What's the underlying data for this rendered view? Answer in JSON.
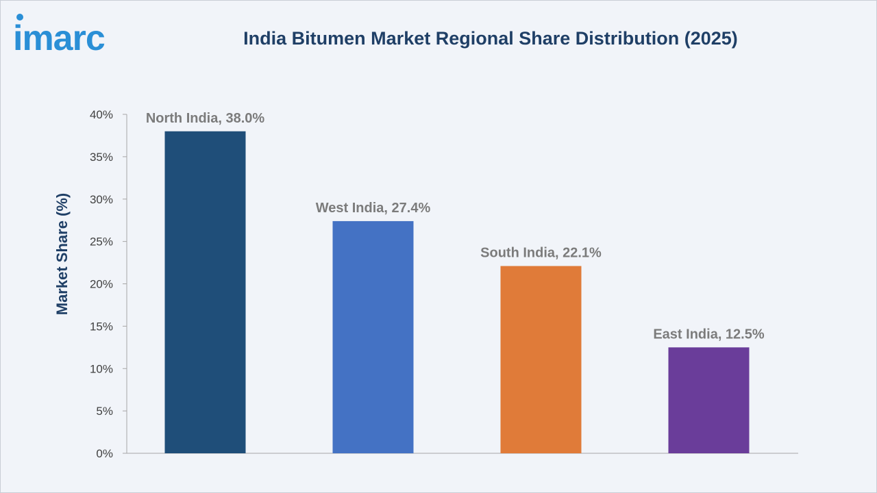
{
  "brand": {
    "logo_text": "imarc"
  },
  "colors": {
    "background": "#f1f4f9",
    "title": "#1f3f66",
    "logo": "#2a8fd6",
    "axis": "#a6a6a6",
    "data_label": "#7b7b7b"
  },
  "chart_data": {
    "type": "bar",
    "title": "India Bitumen Market Regional Share Distribution (2025)",
    "ylabel": "Market Share (%)",
    "xlabel": "",
    "categories": [
      "North India",
      "West India",
      "South India",
      "East India"
    ],
    "values": [
      38.0,
      27.4,
      22.1,
      12.5
    ],
    "data_labels": [
      "North India, 38.0%",
      "West India, 27.4%",
      "South India, 22.1%",
      "East India, 12.5%"
    ],
    "bar_colors": [
      "#1f4e79",
      "#4472c4",
      "#e07b39",
      "#6a3d9a"
    ],
    "ylim": [
      0,
      40
    ],
    "yticks": [
      0,
      5,
      10,
      15,
      20,
      25,
      30,
      35,
      40
    ],
    "ytick_labels": [
      "0%",
      "5%",
      "10%",
      "15%",
      "20%",
      "25%",
      "30%",
      "35%",
      "40%"
    ],
    "grid": false,
    "legend": "none"
  }
}
